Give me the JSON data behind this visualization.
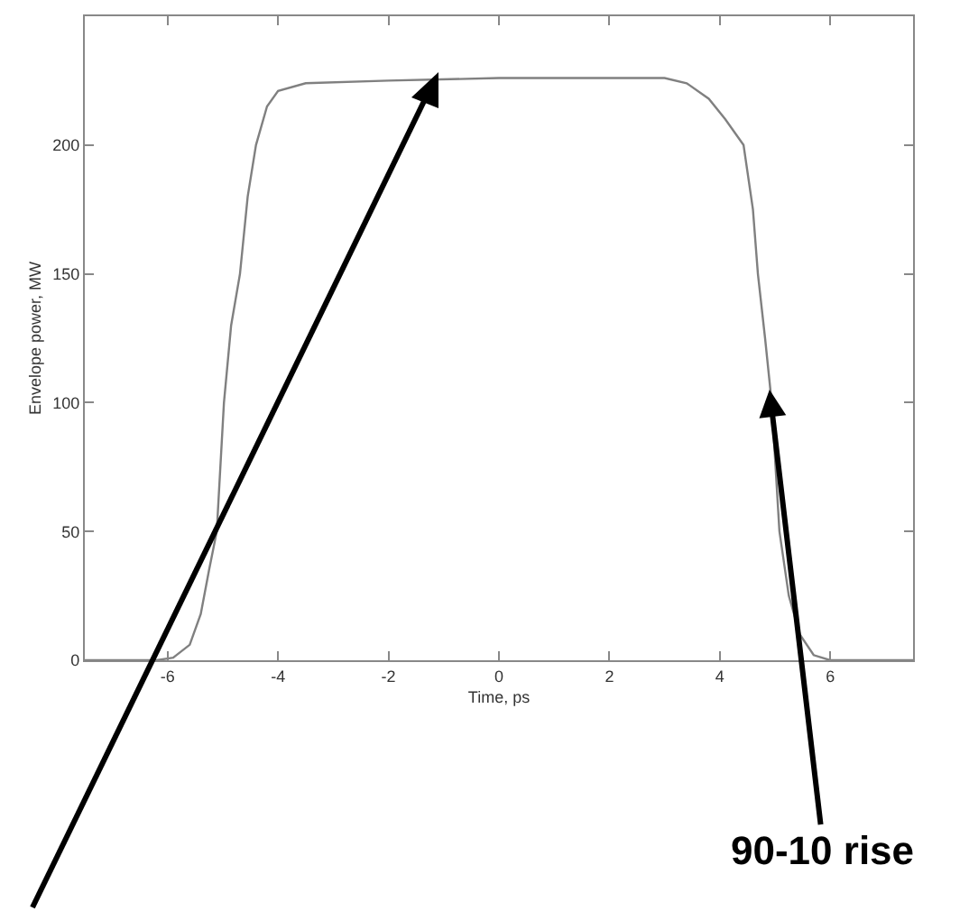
{
  "chart_data": {
    "type": "line",
    "xlabel": "Time, ps",
    "ylabel": "Envelope power, MW",
    "x": [
      -7.5,
      -6.2,
      -5.9,
      -5.6,
      -5.4,
      -5.25,
      -5.11,
      -4.98,
      -4.85,
      -4.69,
      -4.55,
      -4.4,
      -4.2,
      -4,
      -3.5,
      -2,
      0,
      3,
      3.4,
      3.8,
      4.1,
      4.43,
      4.6,
      4.69,
      4.82,
      4.94,
      5.08,
      5.25,
      5.45,
      5.7,
      6,
      7.5
    ],
    "series": [
      {
        "color": "#808080",
        "values": [
          0,
          0,
          1,
          6,
          18,
          35,
          50,
          100,
          130,
          150,
          180,
          200,
          215,
          221,
          224,
          225,
          226,
          226,
          224,
          218,
          210,
          200,
          175,
          150,
          125,
          100,
          50,
          25,
          10,
          2,
          0,
          0
        ]
      }
    ],
    "xlim": [
      -7.5,
      7.5
    ],
    "xticks": [
      -6,
      -4,
      -2,
      0,
      2,
      4,
      6
    ],
    "ylim": [
      0,
      250
    ],
    "yticks": [
      0,
      50,
      100,
      150,
      200
    ],
    "annotations": [
      {
        "text": "90-10 rise",
        "x": 4.9,
        "y": 105
      }
    ]
  }
}
